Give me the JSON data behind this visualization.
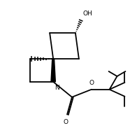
{
  "bg_color": "#ffffff",
  "line_color": "#000000",
  "lw": 1.3,
  "figsize": [
    1.96,
    2.0
  ],
  "dpi": 100,
  "xlim": [
    0,
    9.8
  ],
  "ylim": [
    0,
    10
  ],
  "OH_label": "OH",
  "O_label": "O",
  "N_label": "N",
  "spiro": [
    3.8,
    5.8
  ],
  "cb_size": 1.85,
  "az_size": 1.65
}
